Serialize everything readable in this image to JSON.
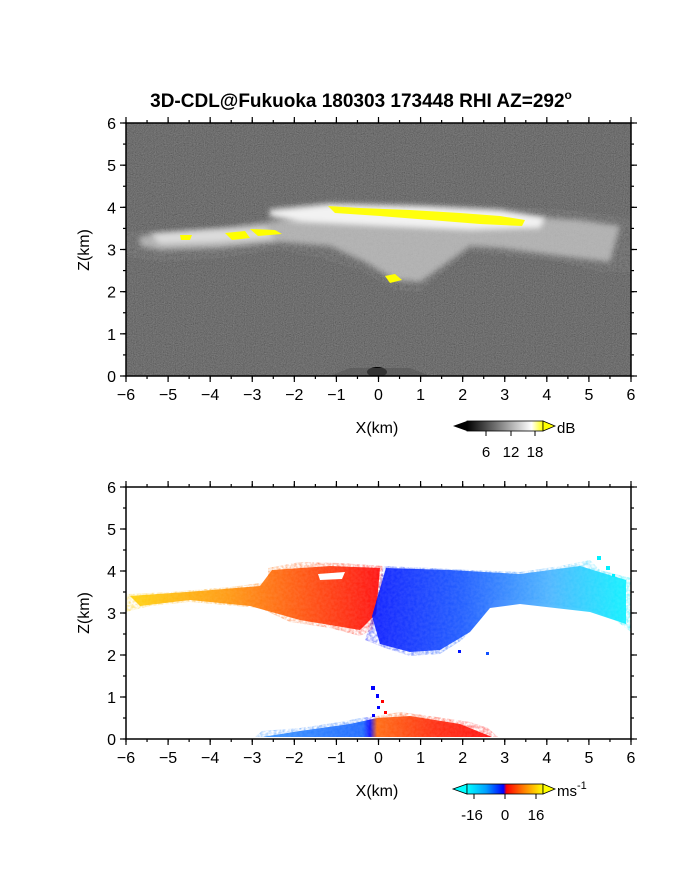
{
  "chart_data": [
    {
      "type": "heatmap",
      "title": "3D-CDL@Fukuoka 180303 173448 RHI AZ=292",
      "title_superscript": "o",
      "xlabel": "X(km)",
      "ylabel": "Z(km)",
      "xlim": [
        -6,
        6
      ],
      "ylim": [
        0,
        6
      ],
      "xticks": [
        "-6",
        "-5",
        "-4",
        "-3",
        "-2",
        "-1",
        "0",
        "1",
        "2",
        "3",
        "4",
        "5",
        "6"
      ],
      "yticks": [
        "0",
        "1",
        "2",
        "3",
        "4",
        "5",
        "6"
      ],
      "colorbar": {
        "unit": "dB",
        "ticks": [
          "6",
          "12",
          "18"
        ],
        "range": [
          0,
          20
        ],
        "colors": [
          "#000000",
          "#ffffff",
          "#ffff00"
        ]
      },
      "features": [
        {
          "name": "cloud layer",
          "x_range": [
            -6,
            6
          ],
          "z_range": [
            2.1,
            4.1
          ]
        },
        {
          "name": "high reflectivity",
          "x_range": [
            -1,
            3.5
          ],
          "z_range": [
            3.7,
            4.0
          ],
          "value": 18
        }
      ]
    },
    {
      "type": "heatmap",
      "title": "",
      "xlabel": "X(km)",
      "ylabel": "Z(km)",
      "xlim": [
        -6,
        6
      ],
      "ylim": [
        0,
        6
      ],
      "xticks": [
        "-6",
        "-5",
        "-4",
        "-3",
        "-2",
        "-1",
        "0",
        "1",
        "2",
        "3",
        "4",
        "5",
        "6"
      ],
      "yticks": [
        "0",
        "1",
        "2",
        "3",
        "4",
        "5",
        "6"
      ],
      "colorbar": {
        "unit": "ms",
        "unit_superscript": "-1",
        "ticks": [
          "-16",
          "0",
          "16"
        ],
        "range": [
          -20,
          20
        ]
      },
      "features": [
        {
          "name": "receding (positive)",
          "x_range": [
            -6,
            0
          ],
          "z_range": [
            2.5,
            4.2
          ],
          "value_range": [
            4,
            16
          ]
        },
        {
          "name": "approaching (negative)",
          "x_range": [
            0,
            6
          ],
          "z_range": [
            1.9,
            4.2
          ],
          "value_range": [
            -16,
            -4
          ]
        },
        {
          "name": "near-surface",
          "x_range": [
            -3,
            3
          ],
          "z_range": [
            0,
            0.5
          ]
        }
      ]
    }
  ]
}
